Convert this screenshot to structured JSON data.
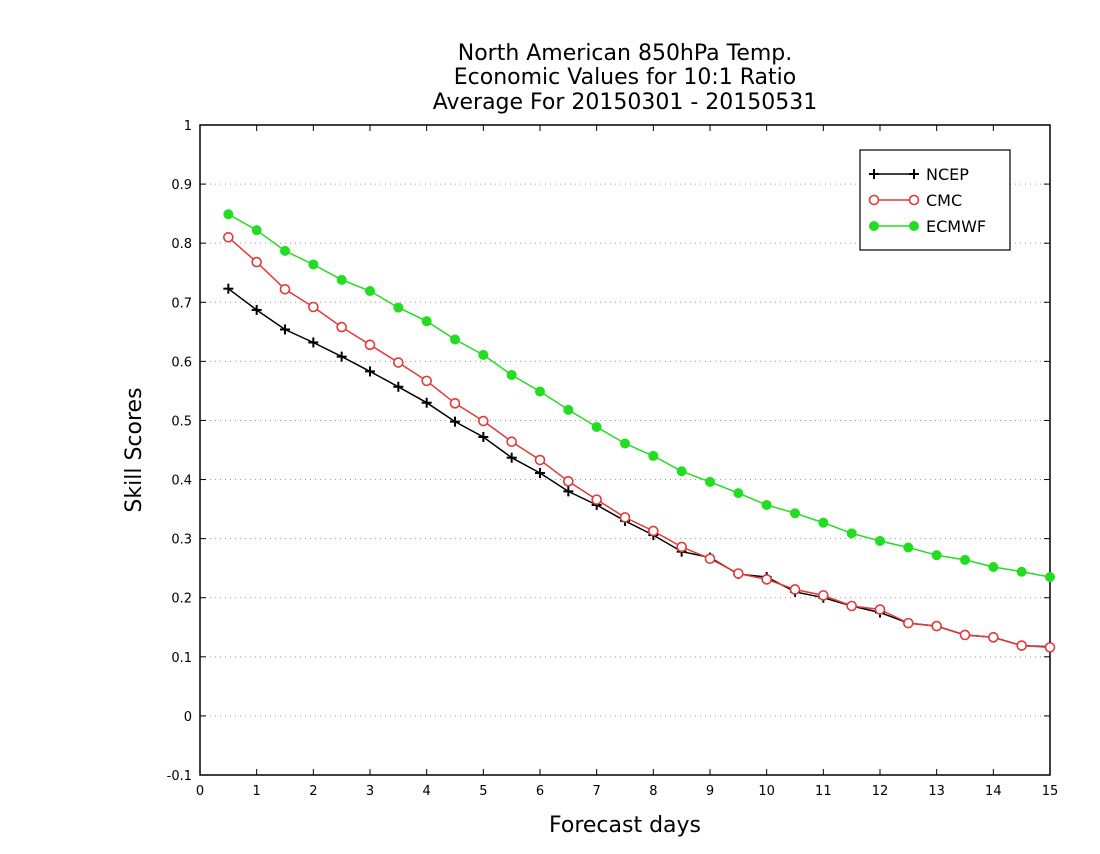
{
  "chart_data": {
    "type": "line",
    "title": [
      "North American 850hPa Temp.",
      "Economic Values for 10:1 Ratio",
      "Average For 20150301 - 20150531"
    ],
    "xlabel": "Forecast days",
    "ylabel": "Skill Scores",
    "xlim": [
      0,
      15
    ],
    "ylim": [
      -0.1,
      1
    ],
    "xticks": [
      "0",
      "1",
      "2",
      "3",
      "4",
      "5",
      "6",
      "7",
      "8",
      "9",
      "10",
      "11",
      "12",
      "13",
      "14",
      "15"
    ],
    "yticks": [
      "-0.1",
      "0",
      "0.1",
      "0.2",
      "0.3",
      "0.4",
      "0.5",
      "0.6",
      "0.7",
      "0.8",
      "0.9",
      "1"
    ],
    "grid": "horizontal dotted",
    "legend_position": "top-right",
    "x": [
      0.5,
      1,
      1.5,
      2,
      2.5,
      3,
      3.5,
      4,
      4.5,
      5,
      5.5,
      6,
      6.5,
      7,
      7.5,
      8,
      8.5,
      9,
      9.5,
      10,
      10.5,
      11,
      11.5,
      12,
      12.5,
      13,
      13.5,
      14,
      14.5,
      15
    ],
    "series": [
      {
        "name": "NCEP",
        "color": "#000000",
        "marker": "plus",
        "values": [
          0.723,
          0.687,
          0.654,
          0.632,
          0.608,
          0.583,
          0.557,
          0.53,
          0.498,
          0.472,
          0.437,
          0.411,
          0.38,
          0.357,
          0.33,
          0.306,
          0.278,
          0.268,
          0.24,
          0.235,
          0.21,
          0.2,
          0.186,
          0.175,
          0.157,
          0.152,
          0.137,
          0.133,
          0.119,
          0.117
        ]
      },
      {
        "name": "CMC",
        "color": "#e03a3a",
        "marker": "open-circle",
        "values": [
          0.81,
          0.768,
          0.722,
          0.692,
          0.658,
          0.628,
          0.598,
          0.567,
          0.529,
          0.499,
          0.464,
          0.433,
          0.397,
          0.366,
          0.336,
          0.313,
          0.286,
          0.266,
          0.241,
          0.231,
          0.214,
          0.204,
          0.186,
          0.18,
          0.157,
          0.152,
          0.137,
          0.133,
          0.119,
          0.116
        ]
      },
      {
        "name": "ECMWF",
        "color": "#22dd22",
        "marker": "filled-circle",
        "values": [
          0.849,
          0.822,
          0.787,
          0.764,
          0.738,
          0.719,
          0.691,
          0.668,
          0.637,
          0.611,
          0.577,
          0.549,
          0.518,
          0.489,
          0.461,
          0.44,
          0.414,
          0.396,
          0.377,
          0.357,
          0.343,
          0.327,
          0.309,
          0.296,
          0.285,
          0.272,
          0.264,
          0.252,
          0.244,
          0.235
        ]
      }
    ]
  }
}
